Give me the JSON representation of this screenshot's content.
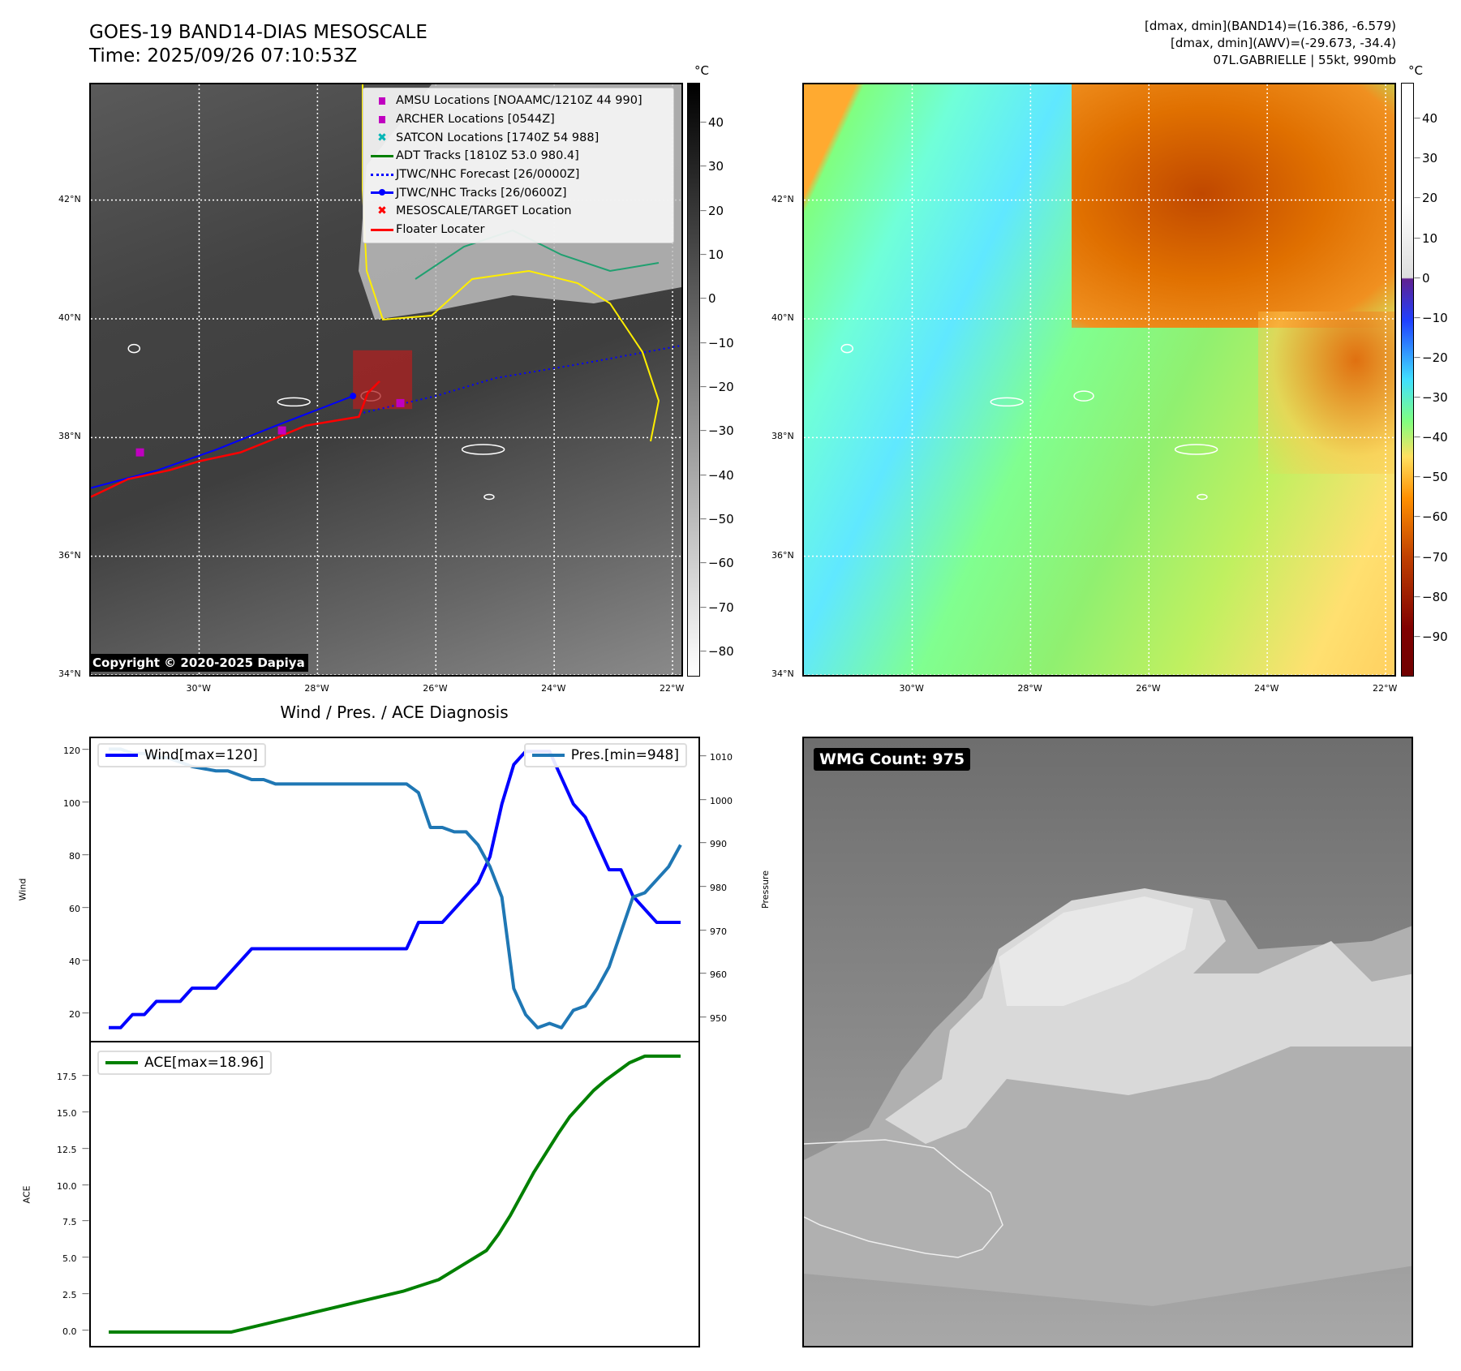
{
  "header": {
    "title": "GOES-19 BAND14-DIAS MESOSCALE",
    "time": "Time: 2025/09/26 07:10:53Z",
    "info_lines": [
      "[dmax, dmin](BAND14)=(16.386, -6.579)",
      "[dmax, dmin](AWV)=(-29.673, -34.4)",
      "07L.GABRIELLE | 55kt, 990mb"
    ]
  },
  "map": {
    "lon_range": [
      -31.83,
      -21.85
    ],
    "lat_range": [
      34.0,
      43.95
    ],
    "lon_ticks": [
      {
        "v": -30,
        "label": "30°W"
      },
      {
        "v": -28,
        "label": "28°W"
      },
      {
        "v": -26,
        "label": "26°W"
      },
      {
        "v": -24,
        "label": "24°W"
      },
      {
        "v": -22,
        "label": "22°W"
      }
    ],
    "lat_ticks": [
      {
        "v": 42,
        "label": "42°N"
      },
      {
        "v": 40,
        "label": "40°N"
      },
      {
        "v": 38,
        "label": "38°N"
      },
      {
        "v": 36,
        "label": "36°N"
      },
      {
        "v": 34,
        "label": "34°N"
      }
    ],
    "floater_track": [
      [
        -31.83,
        37.0
      ],
      [
        -31.2,
        37.3
      ],
      [
        -30.5,
        37.45
      ],
      [
        -30.0,
        37.6
      ],
      [
        -29.3,
        37.75
      ],
      [
        -28.8,
        37.95
      ],
      [
        -28.2,
        38.2
      ],
      [
        -27.6,
        38.3
      ],
      [
        -27.3,
        38.35
      ],
      [
        -27.15,
        38.75
      ],
      [
        -26.95,
        38.95
      ]
    ],
    "jtwc_track": [
      [
        -31.83,
        37.15
      ],
      [
        -30.7,
        37.45
      ],
      [
        -29.7,
        37.8
      ],
      [
        -28.7,
        38.2
      ],
      [
        -27.4,
        38.7
      ]
    ],
    "jtwc_forecast": [
      [
        -27.3,
        38.4
      ],
      [
        -26.0,
        38.7
      ],
      [
        -25.0,
        39.0
      ],
      [
        -23.5,
        39.25
      ],
      [
        -21.85,
        39.55
      ]
    ],
    "mesoscale_box": {
      "lon": [
        -27.4,
        -26.4
      ],
      "lat": [
        38.48,
        39.47
      ]
    },
    "amsu_points": [
      [
        -31.0,
        37.75
      ],
      [
        -28.6,
        38.12
      ],
      [
        -26.6,
        38.58
      ]
    ],
    "copyright": "Copyright © 2020-2025 Dapiya",
    "legend": [
      {
        "label": "AMSU Locations [NOAAMC/1210Z 44 990]",
        "symbol": "square",
        "color": "#c000c0"
      },
      {
        "label": "ARCHER Locations [0544Z]",
        "symbol": "square",
        "color": "#c000c0"
      },
      {
        "label": "SATCON Locations [1740Z 54 988]",
        "symbol": "x",
        "color": "#00b5b5"
      },
      {
        "label": "ADT Tracks [1810Z 53.0 980.4]",
        "symbol": "line",
        "color": "#008000"
      },
      {
        "label": "JTWC/NHC Forecast [26/0000Z]",
        "symbol": "dotted",
        "color": "#0000ff"
      },
      {
        "label": "JTWC/NHC Tracks [26/0600Z]",
        "symbol": "line-dot",
        "color": "#0000ff"
      },
      {
        "label": "MESOSCALE/TARGET Location",
        "symbol": "x",
        "color": "#ff0000"
      },
      {
        "label": "Floater Locater",
        "symbol": "line",
        "color": "#ff0000"
      }
    ]
  },
  "colorbar_ir": {
    "unit": "°C",
    "range": [
      49,
      -85.7
    ],
    "ticks": [
      40,
      30,
      20,
      10,
      0,
      -10,
      -20,
      -30,
      -40,
      -50,
      -60,
      -70,
      -80
    ]
  },
  "colorbar_wv": {
    "unit": "°C",
    "range": [
      49,
      -100
    ],
    "ticks": [
      40,
      30,
      20,
      10,
      0,
      -10,
      -20,
      -30,
      -40,
      -50,
      -60,
      -70,
      -80,
      -90
    ]
  },
  "chart_data": [
    {
      "type": "line",
      "title": "Wind / Pres. / ACE Diagnosis",
      "xlim": [
        -1.5,
        49.5
      ],
      "series": [
        {
          "name": "Wind[max=120]",
          "axis": "left",
          "ylabel": "Wind",
          "ylim": [
            10,
            125
          ],
          "ticks": [
            20,
            40,
            60,
            80,
            100,
            120
          ],
          "color": "#0000ff",
          "points": [
            [
              0,
              15
            ],
            [
              1,
              15
            ],
            [
              2,
              20
            ],
            [
              3,
              20
            ],
            [
              4,
              25
            ],
            [
              6,
              25
            ],
            [
              7,
              30
            ],
            [
              9,
              30
            ],
            [
              12,
              45
            ],
            [
              25,
              45
            ],
            [
              26,
              55
            ],
            [
              28,
              55
            ],
            [
              31,
              70
            ],
            [
              32,
              80
            ],
            [
              33,
              100
            ],
            [
              34,
              115
            ],
            [
              35,
              120
            ],
            [
              37,
              120
            ],
            [
              38,
              110
            ],
            [
              39,
              100
            ],
            [
              40,
              95
            ],
            [
              41,
              85
            ],
            [
              42,
              75
            ],
            [
              43,
              75
            ],
            [
              44,
              65
            ],
            [
              46,
              55
            ],
            [
              48,
              55
            ]
          ]
        },
        {
          "name": "Pres.[min=948]",
          "axis": "right",
          "ylabel": "Pressure",
          "ylim": [
            945,
            1014.5
          ],
          "ticks": [
            950,
            960,
            970,
            980,
            990,
            1000,
            1010
          ],
          "color": "#1f77b4",
          "points": [
            [
              0,
              1012
            ],
            [
              1,
              1012
            ],
            [
              2,
              1011
            ],
            [
              3,
              1011
            ],
            [
              4,
              1010
            ],
            [
              5,
              1010
            ],
            [
              7,
              1008
            ],
            [
              9,
              1007
            ],
            [
              10,
              1007
            ],
            [
              12,
              1005
            ],
            [
              13,
              1005
            ],
            [
              14,
              1004
            ],
            [
              25,
              1004
            ],
            [
              26,
              1002
            ],
            [
              27,
              994
            ],
            [
              28,
              994
            ],
            [
              29,
              993
            ],
            [
              30,
              993
            ],
            [
              31,
              990
            ],
            [
              32,
              985
            ],
            [
              33,
              978
            ],
            [
              34,
              957
            ],
            [
              35,
              951
            ],
            [
              36,
              948
            ],
            [
              37,
              949
            ],
            [
              38,
              948
            ],
            [
              39,
              952
            ],
            [
              40,
              953
            ],
            [
              41,
              957
            ],
            [
              42,
              962
            ],
            [
              43,
              970
            ],
            [
              44,
              978
            ],
            [
              45,
              979
            ],
            [
              46,
              982
            ],
            [
              47,
              985
            ],
            [
              48,
              990
            ]
          ]
        }
      ]
    },
    {
      "type": "line",
      "xlim": [
        -1.5,
        49.5
      ],
      "ylabel": "ACE",
      "ylim": [
        -0.95,
        19.9
      ],
      "ticks": [
        0.0,
        2.5,
        5.0,
        7.5,
        10.0,
        12.5,
        15.0,
        17.5
      ],
      "series": [
        {
          "name": "ACE[max=18.96]",
          "color": "#008000",
          "points": [
            [
              0,
              0
            ],
            [
              10.3,
              0
            ],
            [
              24.7,
              2.8
            ],
            [
              27.7,
              3.6
            ],
            [
              29.7,
              4.6
            ],
            [
              31.7,
              5.6
            ],
            [
              32.7,
              6.7
            ],
            [
              33.7,
              8.0
            ],
            [
              35.7,
              11.0
            ],
            [
              37.7,
              13.6
            ],
            [
              38.7,
              14.8
            ],
            [
              40.7,
              16.6
            ],
            [
              41.7,
              17.3
            ],
            [
              43.7,
              18.5
            ],
            [
              45,
              18.96
            ],
            [
              48,
              18.96
            ]
          ]
        }
      ]
    }
  ],
  "wmg": {
    "label": "WMG Count: 975"
  }
}
